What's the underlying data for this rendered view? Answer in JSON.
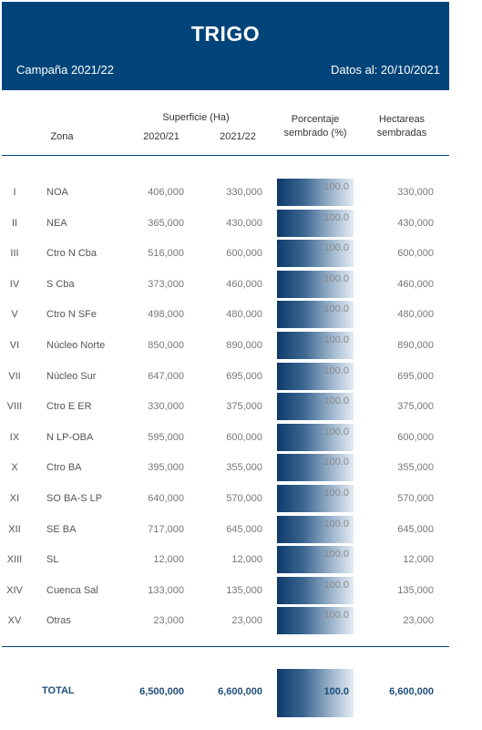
{
  "header": {
    "title": "TRIGO",
    "campaign": "Campaña 2021/22",
    "date": "Datos al: 20/10/2021"
  },
  "columns": {
    "zona": "Zona",
    "superficie": "Superficie (Ha)",
    "y2020": "2020/21",
    "y2021": "2021/22",
    "porcentaje": "Porcentaje sembrado (%)",
    "hectareas": "Hectareas sembradas"
  },
  "rows": [
    {
      "num": "I",
      "zona": "NOA",
      "v2020": "406,000",
      "v2021": "330,000",
      "pct": "100.0",
      "ha": "330,000"
    },
    {
      "num": "II",
      "zona": "NEA",
      "v2020": "365,000",
      "v2021": "430,000",
      "pct": "100.0",
      "ha": "430,000"
    },
    {
      "num": "III",
      "zona": "Ctro N Cba",
      "v2020": "516,000",
      "v2021": "600,000",
      "pct": "100.0",
      "ha": "600,000"
    },
    {
      "num": "IV",
      "zona": "S Cba",
      "v2020": "373,000",
      "v2021": "460,000",
      "pct": "100.0",
      "ha": "460,000"
    },
    {
      "num": "V",
      "zona": "Ctro N SFe",
      "v2020": "498,000",
      "v2021": "480,000",
      "pct": "100.0",
      "ha": "480,000"
    },
    {
      "num": "VI",
      "zona": "Núcleo Norte",
      "v2020": "850,000",
      "v2021": "890,000",
      "pct": "100.0",
      "ha": "890,000"
    },
    {
      "num": "VII",
      "zona": "Núcleo Sur",
      "v2020": "647,000",
      "v2021": "695,000",
      "pct": "100.0",
      "ha": "695,000"
    },
    {
      "num": "VIII",
      "zona": "Ctro E ER",
      "v2020": "330,000",
      "v2021": "375,000",
      "pct": "100.0",
      "ha": "375,000"
    },
    {
      "num": "IX",
      "zona": "N LP-OBA",
      "v2020": "595,000",
      "v2021": "600,000",
      "pct": "100.0",
      "ha": "600,000"
    },
    {
      "num": "X",
      "zona": "Ctro BA",
      "v2020": "395,000",
      "v2021": "355,000",
      "pct": "100.0",
      "ha": "355,000"
    },
    {
      "num": "XI",
      "zona": "SO BA-S LP",
      "v2020": "640,000",
      "v2021": "570,000",
      "pct": "100.0",
      "ha": "570,000"
    },
    {
      "num": "XII",
      "zona": "SE BA",
      "v2020": "717,000",
      "v2021": "645,000",
      "pct": "100.0",
      "ha": "645,000"
    },
    {
      "num": "XIII",
      "zona": "SL",
      "v2020": "12,000",
      "v2021": "12,000",
      "pct": "100.0",
      "ha": "12,000"
    },
    {
      "num": "XIV",
      "zona": "Cuenca Sal",
      "v2020": "133,000",
      "v2021": "135,000",
      "pct": "100.0",
      "ha": "135,000"
    },
    {
      "num": "XV",
      "zona": "Otras",
      "v2020": "23,000",
      "v2021": "23,000",
      "pct": "100.0",
      "ha": "23,000"
    }
  ],
  "total": {
    "label": "TOTAL",
    "v2020": "6,500,000",
    "v2021": "6,600,000",
    "pct": "100.0",
    "ha": "6,600,000"
  },
  "colors": {
    "header_bg": "#004479",
    "bar_dark": "#0d3a6b",
    "bar_light": "#e4ebf2",
    "total_text": "#1e4d7b"
  }
}
